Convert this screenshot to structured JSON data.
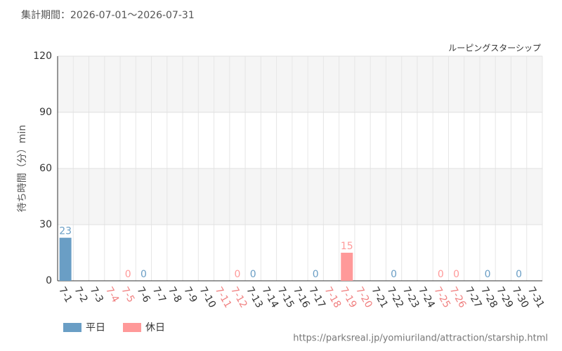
{
  "chart_data": {
    "type": "bar",
    "subtitle": "集計期間：2026-07-01～2026-07-31",
    "title": "ルーピングスターシップ",
    "y_label": "待ち時間（分）min",
    "source": "https://parksreal.jp/yomiuriland/attraction/starship.html",
    "categories": [
      "7-1",
      "7-2",
      "7-3",
      "7-4",
      "7-5",
      "7-6",
      "7-7",
      "7-8",
      "7-9",
      "7-10",
      "7-11",
      "7-12",
      "7-13",
      "7-14",
      "7-15",
      "7-16",
      "7-17",
      "7-18",
      "7-19",
      "7-20",
      "7-21",
      "7-22",
      "7-23",
      "7-24",
      "7-25",
      "7-26",
      "7-27",
      "7-28",
      "7-29",
      "7-30",
      "7-31"
    ],
    "category_colors": [
      "#333",
      "#333",
      "#333",
      "#f08080",
      "#f08080",
      "#333",
      "#333",
      "#333",
      "#333",
      "#333",
      "#f08080",
      "#f08080",
      "#333",
      "#333",
      "#333",
      "#333",
      "#333",
      "#f08080",
      "#f08080",
      "#f08080",
      "#333",
      "#333",
      "#333",
      "#333",
      "#f08080",
      "#f08080",
      "#333",
      "#333",
      "#333",
      "#333",
      "#333"
    ],
    "series": [
      {
        "name": "平日",
        "color": "#6a9ec5",
        "values": [
          23,
          null,
          null,
          null,
          null,
          0,
          null,
          null,
          null,
          null,
          null,
          null,
          0,
          null,
          null,
          null,
          0,
          null,
          null,
          null,
          null,
          0,
          null,
          null,
          null,
          null,
          null,
          0,
          null,
          0,
          null
        ]
      },
      {
        "name": "休日",
        "color": "#ff9999",
        "values": [
          null,
          null,
          null,
          null,
          0,
          null,
          null,
          null,
          null,
          null,
          null,
          0,
          null,
          null,
          null,
          null,
          null,
          null,
          15,
          null,
          null,
          null,
          null,
          null,
          0,
          0,
          null,
          null,
          null,
          null,
          null
        ]
      }
    ],
    "ylim": [
      0,
      120
    ],
    "yticks": [
      0,
      30,
      60,
      90,
      120
    ],
    "grid": true,
    "legend": "bottom-left"
  }
}
